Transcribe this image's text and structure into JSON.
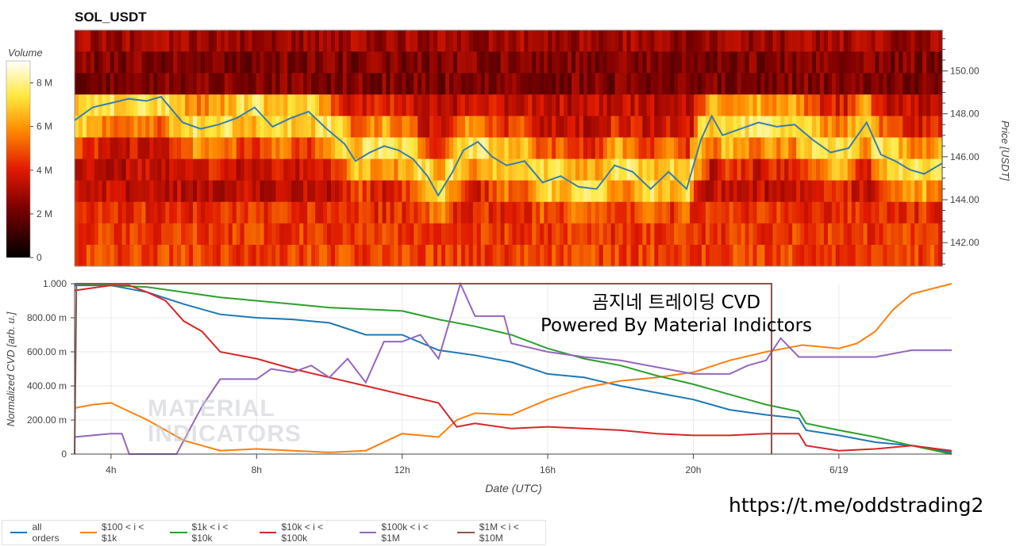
{
  "title": "SOL_USDT",
  "watermark": {
    "line1": "곰지네 트레이딩 CVD",
    "line2": "Powered By Material Indictors",
    "logo_line1": "MATERIAL",
    "logo_line2": "INDICATORS"
  },
  "link": "https://t.me/oddstrading2",
  "colors": {
    "all_orders": "#1f77b4",
    "s100_1k": "#ff7f0e",
    "s1k_10k": "#2ca02c",
    "s10k_100k": "#d62728",
    "s100k_1m": "#9467bd",
    "s1m_10m": "#8c564b",
    "price": "#3b7dab"
  },
  "chart_data": [
    {
      "type": "heatmap",
      "title": "SOL_USDT",
      "colorbar": {
        "label": "Volume",
        "ticks": [
          "0",
          "2 M",
          "4 M",
          "6 M",
          "8 M"
        ],
        "range": [
          0,
          9000000
        ]
      },
      "ylabel_right": "Price [USDT]",
      "yticks": [
        "142.00",
        "144.00",
        "146.00",
        "148.00",
        "150.00"
      ],
      "ylim": [
        140.9,
        151.9
      ],
      "x_range_hours": [
        3.0,
        27.1
      ],
      "price_series": {
        "x": [
          3.0,
          3.5,
          4.0,
          4.5,
          5.0,
          5.4,
          5.6,
          6.0,
          6.5,
          7.0,
          7.5,
          8.0,
          8.5,
          9.0,
          9.5,
          10.0,
          10.5,
          10.8,
          11.2,
          11.6,
          12.0,
          12.4,
          12.8,
          13.1,
          13.5,
          13.8,
          14.2,
          14.6,
          15.0,
          15.5,
          16.0,
          16.5,
          17.0,
          17.5,
          18.0,
          18.5,
          19.0,
          19.5,
          20.0,
          20.4,
          20.7,
          21.0,
          21.5,
          22.0,
          22.5,
          23.0,
          23.5,
          24.0,
          24.5,
          25.0,
          25.4,
          25.8,
          26.2,
          26.6,
          27.1
        ],
        "y": [
          147.7,
          148.3,
          148.5,
          148.7,
          148.6,
          148.8,
          148.4,
          147.6,
          147.3,
          147.5,
          147.8,
          148.3,
          147.4,
          147.8,
          148.1,
          147.3,
          146.6,
          145.8,
          146.2,
          146.5,
          146.3,
          145.9,
          145.1,
          144.2,
          145.3,
          146.3,
          146.7,
          146.0,
          145.6,
          145.8,
          144.8,
          145.1,
          144.6,
          144.5,
          145.6,
          145.3,
          144.5,
          145.3,
          144.5,
          146.8,
          147.9,
          147.0,
          147.3,
          147.6,
          147.4,
          147.5,
          146.8,
          146.2,
          146.4,
          147.6,
          146.1,
          145.8,
          145.4,
          145.2,
          145.7
        ]
      }
    },
    {
      "type": "line",
      "xlabel": "Date (UTC)",
      "ylabel": "Normalized CVD [arb. u.]",
      "x_ticks": [
        "4h",
        "8h",
        "12h",
        "16h",
        "20h",
        "6/19"
      ],
      "x_tick_hours": [
        4,
        8,
        12,
        16,
        20,
        24
      ],
      "y_ticks": [
        "0",
        "200.00 m",
        "400.00 m",
        "600.00 m",
        "800.00 m",
        "1.000"
      ],
      "ylim": [
        0,
        1
      ],
      "x_range_hours": [
        3.0,
        27.1
      ],
      "series": [
        {
          "name": "all orders",
          "color_key": "all_orders",
          "x": [
            3.0,
            4.0,
            5.0,
            6.0,
            7.0,
            8.0,
            9.0,
            10.0,
            11.0,
            12.0,
            13.0,
            14.0,
            15.0,
            16.0,
            17.0,
            18.0,
            19.0,
            20.0,
            21.0,
            22.0,
            22.9,
            23.1,
            24.0,
            25.0,
            26.0,
            27.1
          ],
          "y": [
            0.99,
            0.99,
            0.95,
            0.88,
            0.82,
            0.8,
            0.79,
            0.77,
            0.7,
            0.7,
            0.61,
            0.58,
            0.54,
            0.47,
            0.45,
            0.4,
            0.36,
            0.32,
            0.26,
            0.23,
            0.21,
            0.14,
            0.11,
            0.07,
            0.05,
            0.01
          ]
        },
        {
          "name": "$100 < i < $1k",
          "color_key": "s100_1k",
          "x": [
            3.0,
            3.5,
            4.0,
            5.0,
            6.0,
            7.0,
            8.0,
            9.0,
            10.0,
            11.0,
            12.0,
            13.0,
            13.5,
            14.0,
            15.0,
            16.0,
            17.0,
            18.0,
            19.0,
            20.0,
            21.0,
            22.0,
            22.5,
            23.0,
            24.0,
            24.5,
            25.0,
            25.5,
            26.0,
            27.1
          ],
          "y": [
            0.27,
            0.29,
            0.3,
            0.2,
            0.08,
            0.02,
            0.03,
            0.02,
            0.01,
            0.02,
            0.12,
            0.1,
            0.2,
            0.24,
            0.23,
            0.32,
            0.39,
            0.43,
            0.45,
            0.48,
            0.55,
            0.6,
            0.62,
            0.64,
            0.62,
            0.65,
            0.72,
            0.85,
            0.94,
            1.0
          ]
        },
        {
          "name": "$1k < i < $10k",
          "color_key": "s1k_10k",
          "x": [
            3.0,
            4.0,
            5.0,
            6.0,
            7.0,
            8.0,
            9.0,
            10.0,
            11.0,
            12.0,
            13.0,
            14.0,
            15.0,
            16.0,
            17.0,
            18.0,
            19.0,
            20.0,
            21.0,
            22.0,
            22.9,
            23.1,
            24.0,
            25.0,
            26.0,
            27.1
          ],
          "y": [
            1.0,
            0.99,
            0.98,
            0.95,
            0.92,
            0.9,
            0.88,
            0.86,
            0.85,
            0.84,
            0.79,
            0.75,
            0.7,
            0.62,
            0.56,
            0.52,
            0.46,
            0.41,
            0.35,
            0.29,
            0.25,
            0.18,
            0.14,
            0.1,
            0.05,
            0.0
          ]
        },
        {
          "name": "$10k < i < $100k",
          "color_key": "s10k_100k",
          "x": [
            3.0,
            4.0,
            4.5,
            5.0,
            5.5,
            6.0,
            6.5,
            7.0,
            8.0,
            9.0,
            10.0,
            11.0,
            12.0,
            13.0,
            13.5,
            14.0,
            15.0,
            16.0,
            17.0,
            18.0,
            19.0,
            20.0,
            21.0,
            22.0,
            22.9,
            23.1,
            24.0,
            25.0,
            26.0,
            27.1
          ],
          "y": [
            0.96,
            0.99,
            0.99,
            0.95,
            0.9,
            0.78,
            0.72,
            0.6,
            0.56,
            0.5,
            0.45,
            0.4,
            0.35,
            0.3,
            0.16,
            0.18,
            0.15,
            0.16,
            0.15,
            0.14,
            0.12,
            0.11,
            0.11,
            0.12,
            0.12,
            0.05,
            0.02,
            0.03,
            0.05,
            0.02
          ]
        },
        {
          "name": "$100k < i < $1M",
          "color_key": "s100k_1m",
          "x": [
            3.0,
            4.0,
            4.3,
            4.5,
            5.0,
            5.8,
            6.1,
            6.5,
            7.0,
            7.6,
            8.0,
            8.4,
            9.0,
            9.5,
            10.0,
            10.5,
            11.0,
            11.5,
            12.0,
            12.5,
            13.0,
            13.4,
            13.6,
            14.0,
            14.8,
            15.0,
            16.0,
            17.0,
            18.0,
            19.0,
            20.0,
            21.0,
            21.5,
            22.0,
            22.4,
            22.9,
            23.1,
            24.0,
            25.0,
            26.0,
            27.1
          ],
          "y": [
            0.1,
            0.12,
            0.12,
            0.0,
            0.0,
            0.0,
            0.12,
            0.28,
            0.44,
            0.44,
            0.44,
            0.5,
            0.48,
            0.52,
            0.45,
            0.56,
            0.42,
            0.66,
            0.66,
            0.7,
            0.56,
            0.85,
            1.0,
            0.81,
            0.81,
            0.65,
            0.6,
            0.57,
            0.55,
            0.51,
            0.47,
            0.47,
            0.52,
            0.55,
            0.68,
            0.57,
            0.57,
            0.57,
            0.57,
            0.61,
            0.61
          ]
        },
        {
          "name": "$1M < i < $10M",
          "color_key": "s1m_10m",
          "x": [
            3.0,
            3.05,
            22.1,
            22.1,
            22.15,
            22.15
          ],
          "y": [
            0.0,
            1.0,
            1.0,
            1.0,
            1.0,
            0.0
          ]
        }
      ]
    }
  ],
  "legend": [
    {
      "label": "all orders",
      "color_key": "all_orders"
    },
    {
      "label": "$100 < i < $1k",
      "color_key": "s100_1k"
    },
    {
      "label": "$1k < i < $10k",
      "color_key": "s1k_10k"
    },
    {
      "label": "$10k < i < $100k",
      "color_key": "s10k_100k"
    },
    {
      "label": "$100k < i < $1M",
      "color_key": "s100k_1m"
    },
    {
      "label": "$1M < i < $10M",
      "color_key": "s1m_10m"
    }
  ]
}
